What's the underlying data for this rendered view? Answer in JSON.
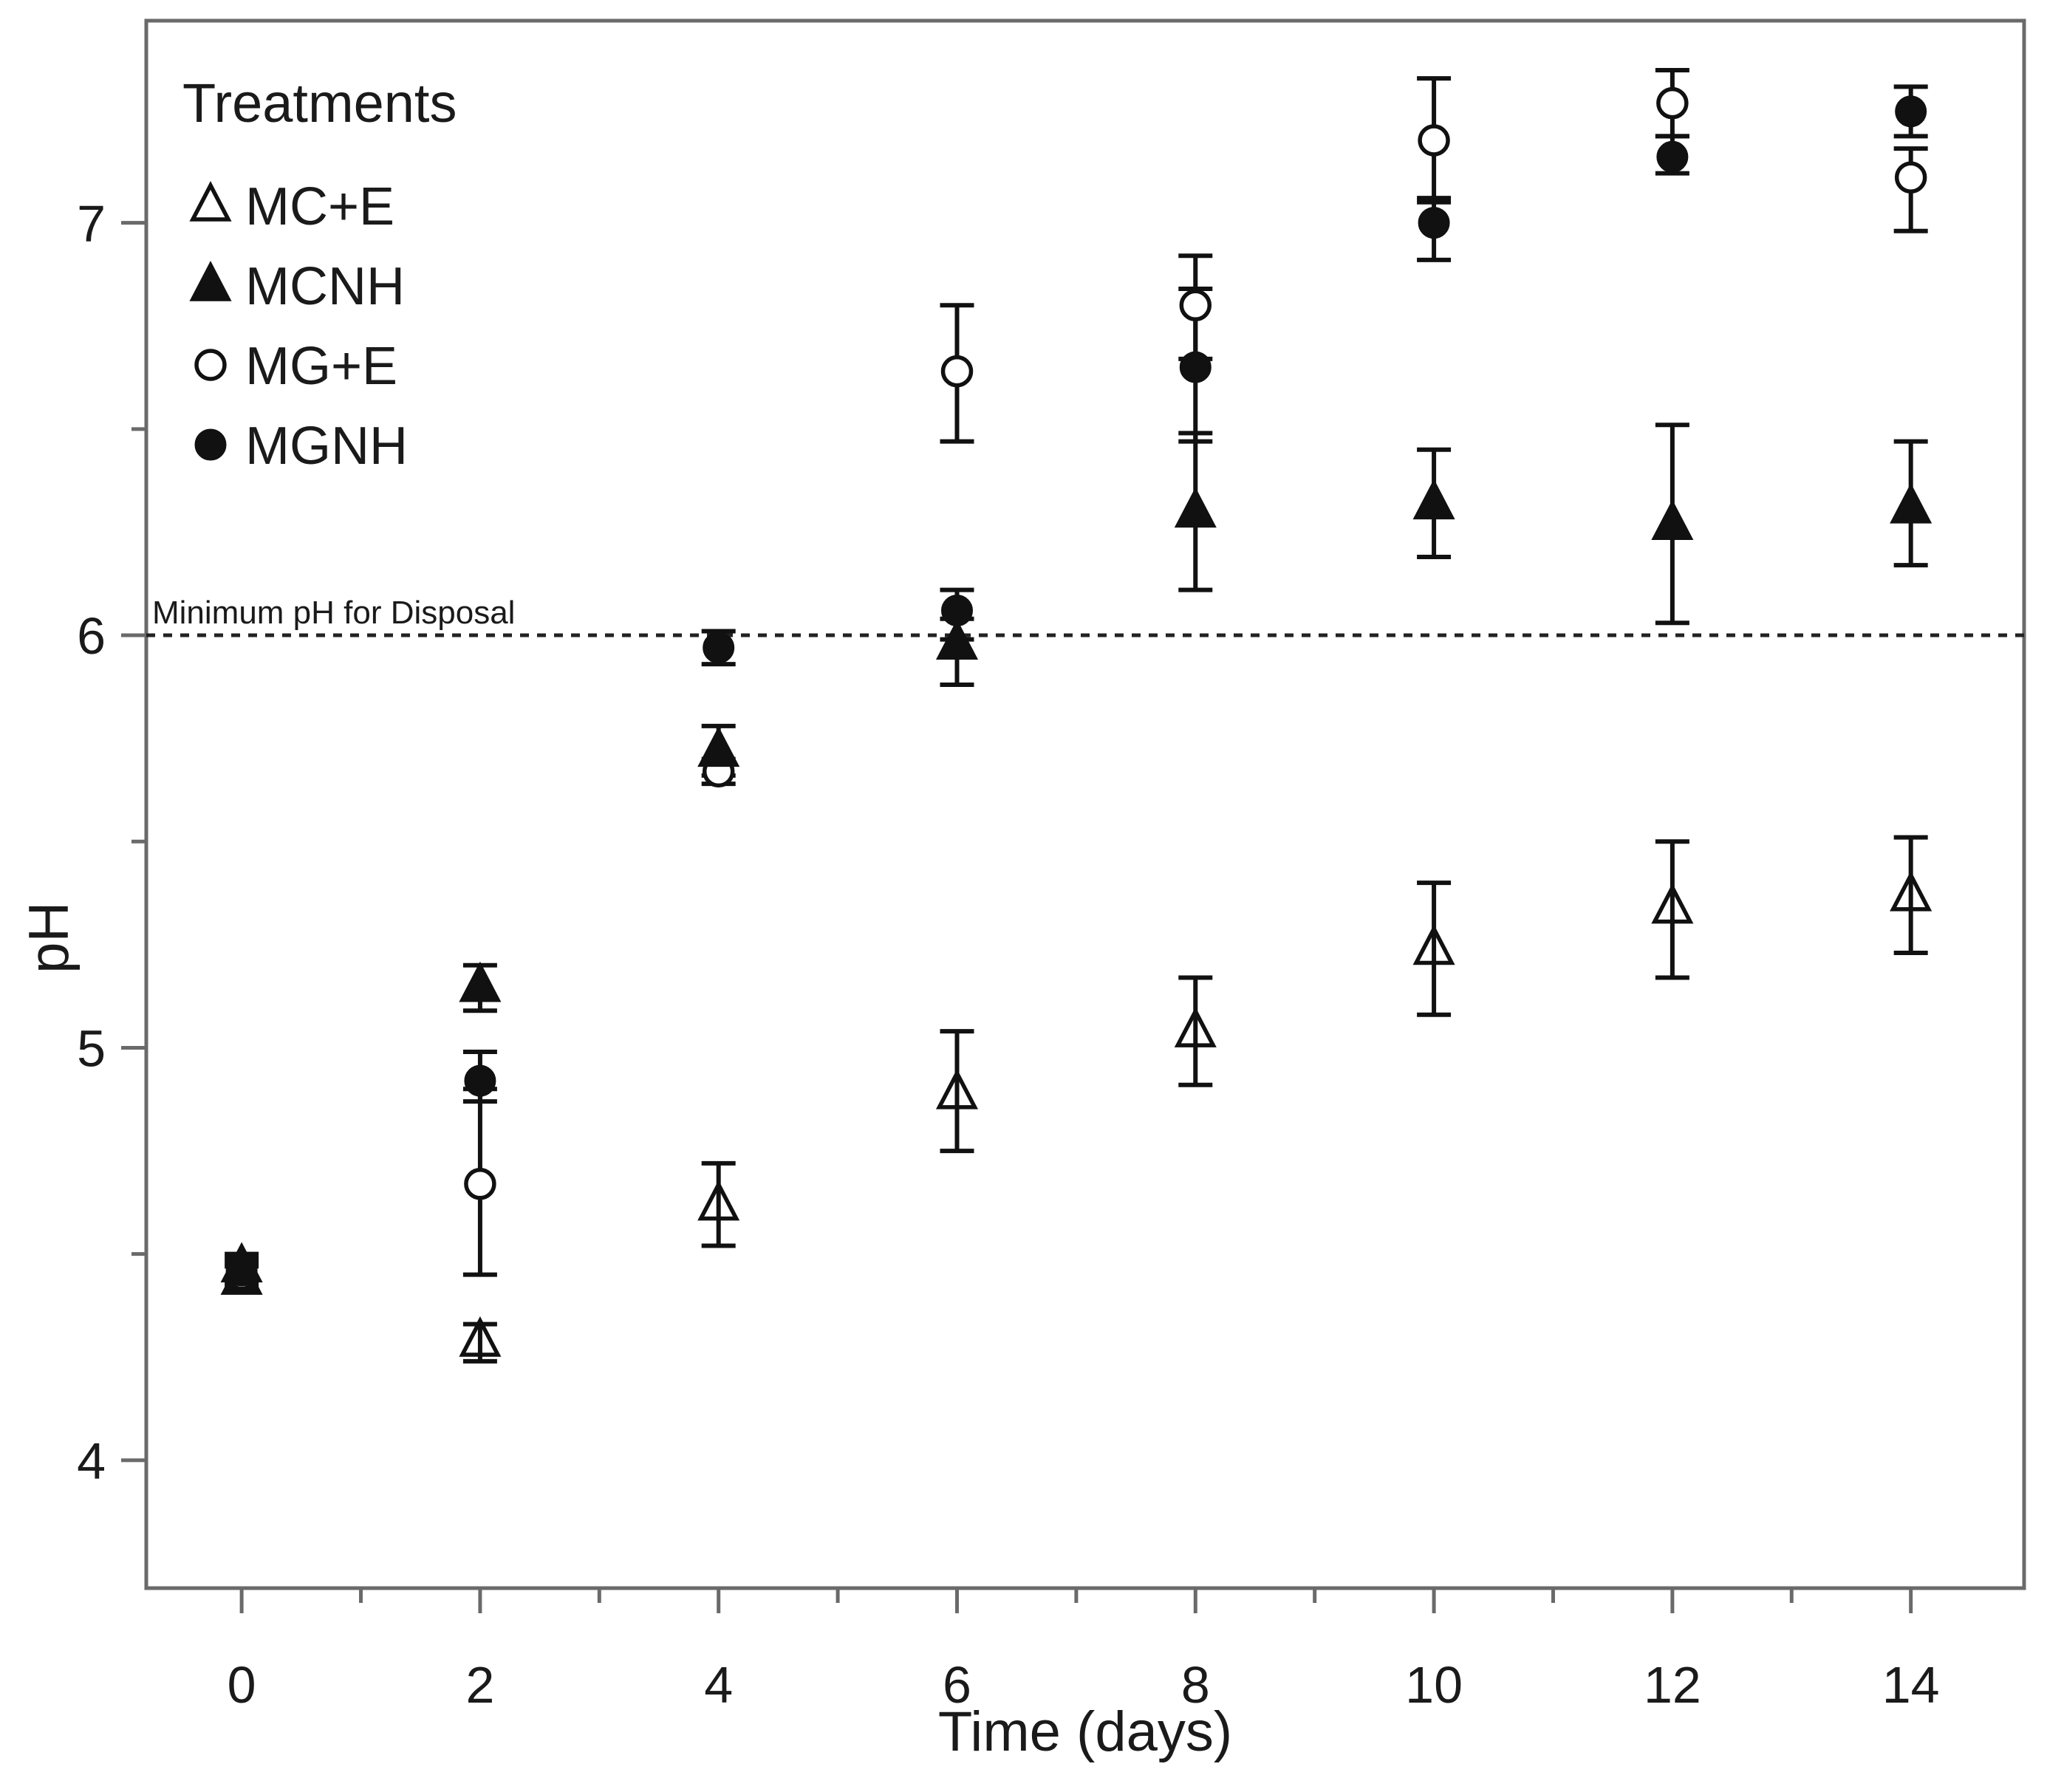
{
  "chart_data": {
    "type": "scatter",
    "title": "",
    "xlabel": "Time (days)",
    "ylabel": "pH",
    "x": [
      0,
      2,
      4,
      6,
      8,
      10,
      12,
      14
    ],
    "xlim": [
      -0.8,
      14.95
    ],
    "ylim": [
      3.69,
      7.49
    ],
    "x_major_ticks": [
      0,
      2,
      4,
      6,
      8,
      10,
      12,
      14
    ],
    "x_minor_ticks": [
      1,
      3,
      5,
      7,
      9,
      11,
      13,
      15
    ],
    "y_major_ticks": [
      4,
      5,
      6,
      7
    ],
    "y_minor_ticks": [
      4.5,
      5.5,
      6.5,
      7.5
    ],
    "grid": "off",
    "legend_position": "top-left",
    "legend_title": "Treatments",
    "reference_line": {
      "y": 6.0,
      "label": "Minimum pH for Disposal",
      "style": "dotted"
    },
    "colors": {
      "data": "#111111",
      "frame": "#6a6a6a",
      "text": "#1a1a1a"
    },
    "series": [
      {
        "name": "MC+E",
        "marker": "triangle-open",
        "values": [
          4.44,
          4.29,
          4.62,
          4.89,
          5.04,
          5.24,
          5.34,
          5.37
        ],
        "err_lo": [
          4.41,
          4.24,
          4.52,
          4.75,
          4.91,
          5.08,
          5.17,
          5.23
        ],
        "err_hi": [
          4.47,
          4.33,
          4.72,
          5.04,
          5.17,
          5.4,
          5.5,
          5.51
        ]
      },
      {
        "name": "MCNH",
        "marker": "triangle-filled",
        "values": [
          4.47,
          5.15,
          5.72,
          5.98,
          6.3,
          6.32,
          6.27,
          6.31
        ],
        "err_lo": [
          4.44,
          5.09,
          5.66,
          5.88,
          6.11,
          6.19,
          6.03,
          6.17
        ],
        "err_hi": [
          4.5,
          5.2,
          5.78,
          6.04,
          6.49,
          6.45,
          6.51,
          6.47
        ]
      },
      {
        "name": "MG+E",
        "marker": "circle-open",
        "values": [
          4.45,
          4.67,
          5.67,
          6.64,
          6.8,
          7.2,
          7.29,
          7.11
        ],
        "err_lo": [
          4.42,
          4.45,
          5.64,
          6.47,
          6.67,
          7.06,
          7.21,
          6.98
        ],
        "err_hi": [
          4.48,
          4.9,
          5.7,
          6.8,
          6.92,
          7.35,
          7.37,
          7.18
        ]
      },
      {
        "name": "MGNH",
        "marker": "circle-filled",
        "values": [
          4.46,
          4.92,
          5.97,
          6.06,
          6.65,
          7.0,
          7.16,
          7.27
        ],
        "err_lo": [
          4.43,
          4.87,
          5.93,
          5.99,
          6.47,
          6.91,
          7.12,
          7.21
        ],
        "err_hi": [
          4.49,
          4.99,
          6.01,
          6.11,
          6.84,
          7.05,
          7.21,
          7.33
        ]
      }
    ]
  }
}
